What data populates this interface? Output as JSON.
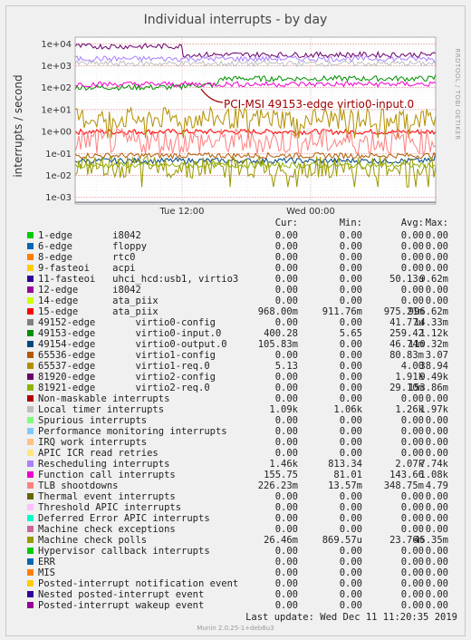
{
  "chart_data": {
    "type": "line",
    "title": "Individual interrupts - by day",
    "ylabel": "interrupts / second",
    "y_scale": "log",
    "ylim": [
      0.0005,
      20000
    ],
    "y_ticks": [
      "1e-03",
      "1e-02",
      "1e-01",
      "1e+00",
      "1e+01",
      "1e+02",
      "1e+03",
      "1e+04"
    ],
    "x_ticks": [
      "Tue 12:00",
      "Wed 00:00"
    ],
    "grid": true,
    "annotation": "PCI-MSI 49153-edge virtio0-input.0",
    "columns": [
      "Cur:",
      "Min:",
      "Avg:",
      "Max:"
    ],
    "series": [
      {
        "name": "1-edge       i8042",
        "color": "#00cc00",
        "values": [
          "0.00",
          "0.00",
          "0.00",
          "0.00"
        ]
      },
      {
        "name": "6-edge       floppy",
        "color": "#0066b3",
        "values": [
          "0.00",
          "0.00",
          "0.00",
          "0.00"
        ]
      },
      {
        "name": "8-edge       rtc0",
        "color": "#ff8000",
        "values": [
          "0.00",
          "0.00",
          "0.00",
          "0.00"
        ]
      },
      {
        "name": "9-fasteoi    acpi",
        "color": "#ffcc00",
        "values": [
          "0.00",
          "0.00",
          "0.00",
          "0.00"
        ]
      },
      {
        "name": "11-fasteoi   uhci_hcd:usb1, virtio3",
        "color": "#330099",
        "values": [
          "0.00",
          "0.00",
          "50.13u",
          "9.62m"
        ]
      },
      {
        "name": "12-edge      i8042",
        "color": "#990099",
        "values": [
          "0.00",
          "0.00",
          "0.00",
          "0.00"
        ]
      },
      {
        "name": "14-edge      ata_piix",
        "color": "#ccff00",
        "values": [
          "0.00",
          "0.00",
          "0.00",
          "0.00"
        ]
      },
      {
        "name": "15-edge      ata_piix",
        "color": "#ff0000",
        "values": [
          "968.00m",
          "911.76m",
          "975.21m",
          "996.62m"
        ]
      },
      {
        "name": "49152-edge       virtio0-config",
        "color": "#808080",
        "values": [
          "0.00",
          "0.00",
          "41.77u",
          "14.33m"
        ]
      },
      {
        "name": "49153-edge       virtio0-input.0",
        "color": "#008f00",
        "values": [
          "400.28",
          "5.65",
          "259.42",
          "1.12k"
        ]
      },
      {
        "name": "49154-edge       virtio0-output.0",
        "color": "#00487d",
        "values": [
          "105.83m",
          "0.00",
          "46.74m",
          "110.32m"
        ]
      },
      {
        "name": "65536-edge       virtio1-config",
        "color": "#b35a00",
        "values": [
          "0.00",
          "0.00",
          "80.83m",
          "3.07"
        ]
      },
      {
        "name": "65537-edge       virtio1-req.0",
        "color": "#b38f00",
        "values": [
          "5.13",
          "0.00",
          "4.00",
          "38.94"
        ]
      },
      {
        "name": "81920-edge       virtio2-config",
        "color": "#6b006b",
        "values": [
          "0.00",
          "0.00",
          "1.91k",
          "9.49k"
        ]
      },
      {
        "name": "81921-edge       virtio2-req.0",
        "color": "#8fb300",
        "values": [
          "0.00",
          "0.00",
          "29.10m",
          "153.86m"
        ]
      },
      {
        "name": "Non-maskable interrupts",
        "color": "#b30000",
        "values": [
          "0.00",
          "0.00",
          "0.00",
          "0.00"
        ]
      },
      {
        "name": "Local timer interrupts",
        "color": "#bebebe",
        "values": [
          "1.09k",
          "1.06k",
          "1.26k",
          "1.97k"
        ]
      },
      {
        "name": "Spurious interrupts",
        "color": "#80ff80",
        "values": [
          "0.00",
          "0.00",
          "0.00",
          "0.00"
        ]
      },
      {
        "name": "Performance monitoring interrupts",
        "color": "#80c9ff",
        "values": [
          "0.00",
          "0.00",
          "0.00",
          "0.00"
        ]
      },
      {
        "name": "IRQ work interrupts",
        "color": "#ffc080",
        "values": [
          "0.00",
          "0.00",
          "0.00",
          "0.00"
        ]
      },
      {
        "name": "APIC ICR read retries",
        "color": "#ffe680",
        "values": [
          "0.00",
          "0.00",
          "0.00",
          "0.00"
        ]
      },
      {
        "name": "Rescheduling interrupts",
        "color": "#aa80ff",
        "values": [
          "1.46k",
          "813.34",
          "2.07k",
          "7.74k"
        ]
      },
      {
        "name": "Function call interrupts",
        "color": "#ee00cc",
        "values": [
          "155.75",
          "81.01",
          "143.66",
          "1.08k"
        ]
      },
      {
        "name": "TLB shootdowns",
        "color": "#ff8080",
        "values": [
          "226.23m",
          "13.57m",
          "348.75m",
          "4.79"
        ]
      },
      {
        "name": "Thermal event interrupts",
        "color": "#666600",
        "values": [
          "0.00",
          "0.00",
          "0.00",
          "0.00"
        ]
      },
      {
        "name": "Threshold APIC interrupts",
        "color": "#ffbfff",
        "values": [
          "0.00",
          "0.00",
          "0.00",
          "0.00"
        ]
      },
      {
        "name": "Deferred Error APIC interrupts",
        "color": "#00ffcc",
        "values": [
          "0.00",
          "0.00",
          "0.00",
          "0.00"
        ]
      },
      {
        "name": "Machine check exceptions",
        "color": "#cc6699",
        "values": [
          "0.00",
          "0.00",
          "0.00",
          "0.00"
        ]
      },
      {
        "name": "Machine check polls",
        "color": "#999900",
        "values": [
          "26.46m",
          "869.57u",
          "23.76m",
          "45.35m"
        ]
      },
      {
        "name": "Hypervisor callback interrupts",
        "color": "#00cc00",
        "values": [
          "0.00",
          "0.00",
          "0.00",
          "0.00"
        ]
      },
      {
        "name": "ERR",
        "color": "#0066b3",
        "values": [
          "0.00",
          "0.00",
          "0.00",
          "0.00"
        ]
      },
      {
        "name": "MIS",
        "color": "#ff8000",
        "values": [
          "0.00",
          "0.00",
          "0.00",
          "0.00"
        ]
      },
      {
        "name": "Posted-interrupt notification event",
        "color": "#ffcc00",
        "values": [
          "0.00",
          "0.00",
          "0.00",
          "0.00"
        ]
      },
      {
        "name": "Nested posted-interrupt event",
        "color": "#330099",
        "values": [
          "0.00",
          "0.00",
          "0.00",
          "0.00"
        ]
      },
      {
        "name": "Posted-interrupt wakeup event",
        "color": "#990099",
        "values": [
          "0.00",
          "0.00",
          "0.00",
          "0.00"
        ]
      }
    ]
  },
  "footer": {
    "last_update": "Last update:  Wed Dec 11 11:20:35 2019",
    "munin_version": "Munin 2.0.25-1+deb8u3",
    "side_label": "RRDTOOL / TOBI OETIKER"
  }
}
